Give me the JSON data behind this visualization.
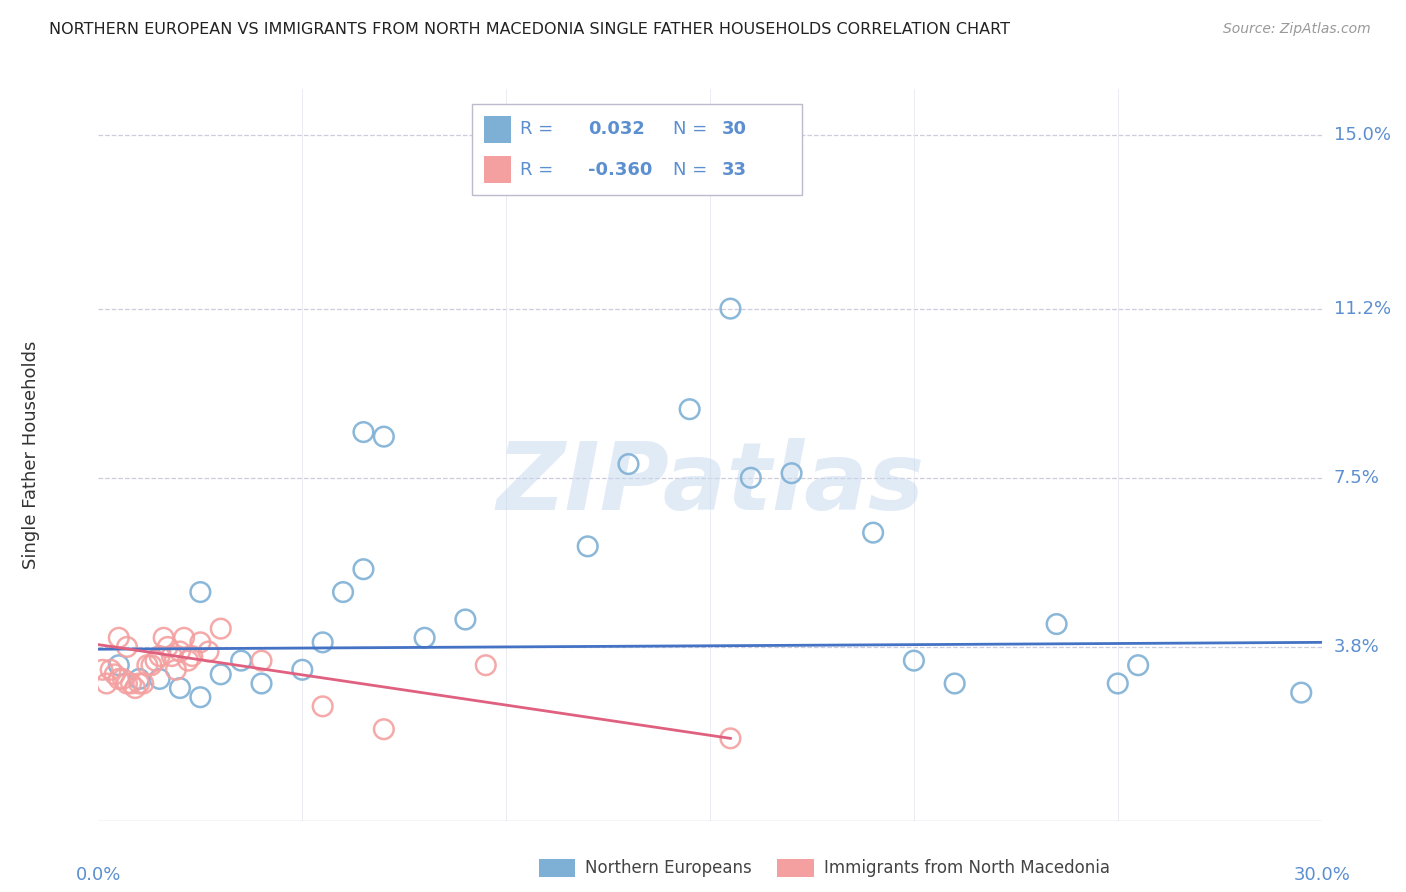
{
  "title": "NORTHERN EUROPEAN VS IMMIGRANTS FROM NORTH MACEDONIA SINGLE FATHER HOUSEHOLDS CORRELATION CHART",
  "source": "Source: ZipAtlas.com",
  "ylabel": "Single Father Households",
  "yticks": [
    0.0,
    0.038,
    0.075,
    0.112,
    0.15
  ],
  "ytick_labels": [
    "",
    "3.8%",
    "7.5%",
    "11.2%",
    "15.0%"
  ],
  "xlim": [
    0.0,
    0.3
  ],
  "ylim": [
    0.0,
    0.16
  ],
  "blue_color": "#7EB0D5",
  "pink_color": "#F4A0A0",
  "line_blue": "#4472C4",
  "line_pink": "#E06080",
  "axis_tick_color": "#5B8FD0",
  "watermark_color": "#C5D8EE",
  "grid_color": "#CCCCDD",
  "blue_scatter_x": [
    0.155,
    0.005,
    0.01,
    0.015,
    0.02,
    0.025,
    0.025,
    0.03,
    0.035,
    0.04,
    0.05,
    0.055,
    0.06,
    0.065,
    0.065,
    0.07,
    0.08,
    0.09,
    0.12,
    0.13,
    0.145,
    0.16,
    0.17,
    0.19,
    0.2,
    0.21,
    0.235,
    0.25,
    0.255,
    0.295
  ],
  "blue_scatter_y": [
    0.112,
    0.034,
    0.031,
    0.031,
    0.029,
    0.027,
    0.05,
    0.032,
    0.035,
    0.03,
    0.033,
    0.039,
    0.05,
    0.055,
    0.085,
    0.084,
    0.04,
    0.044,
    0.06,
    0.078,
    0.09,
    0.075,
    0.076,
    0.063,
    0.035,
    0.03,
    0.043,
    0.03,
    0.034,
    0.028
  ],
  "pink_scatter_x": [
    0.001,
    0.002,
    0.003,
    0.004,
    0.005,
    0.005,
    0.006,
    0.007,
    0.007,
    0.008,
    0.009,
    0.01,
    0.011,
    0.012,
    0.013,
    0.014,
    0.015,
    0.016,
    0.017,
    0.018,
    0.019,
    0.02,
    0.021,
    0.022,
    0.023,
    0.025,
    0.027,
    0.03,
    0.04,
    0.055,
    0.07,
    0.095,
    0.155
  ],
  "pink_scatter_y": [
    0.033,
    0.03,
    0.033,
    0.032,
    0.031,
    0.04,
    0.031,
    0.03,
    0.038,
    0.03,
    0.029,
    0.03,
    0.03,
    0.034,
    0.034,
    0.035,
    0.036,
    0.04,
    0.038,
    0.036,
    0.033,
    0.037,
    0.04,
    0.035,
    0.036,
    0.039,
    0.037,
    0.042,
    0.035,
    0.025,
    0.02,
    0.034,
    0.018
  ],
  "blue_line_x": [
    0.0,
    0.3
  ],
  "blue_line_y": [
    0.0375,
    0.039
  ],
  "pink_line_x": [
    0.0,
    0.155
  ],
  "pink_line_y": [
    0.0385,
    0.018
  ],
  "legend_blue_r": "0.032",
  "legend_blue_n": "30",
  "legend_pink_r": "-0.360",
  "legend_pink_n": "33"
}
